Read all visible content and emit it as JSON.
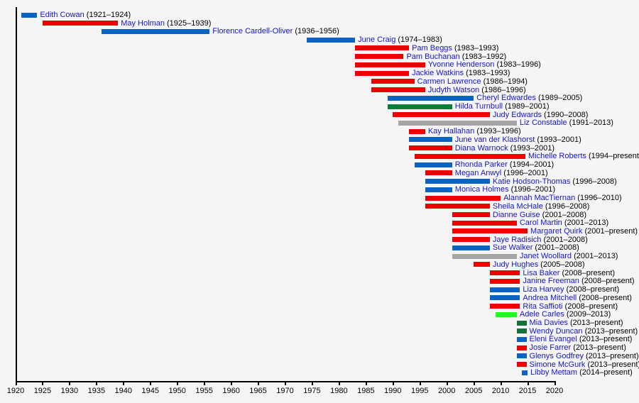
{
  "chart_data": {
    "type": "bar",
    "layout": "horizontal-timeline-gantt",
    "title": "",
    "xlabel": "",
    "ylabel": "",
    "grid": false,
    "legend": false,
    "x_axis": {
      "min": 1920,
      "max": 2020,
      "tick_interval": 5,
      "tick_labels": [
        "1920",
        "1925",
        "1930",
        "1935",
        "1940",
        "1945",
        "1950",
        "1955",
        "1960",
        "1965",
        "1970",
        "1975",
        "1980",
        "1985",
        "1990",
        "1995",
        "2000",
        "2005",
        "2010",
        "2015",
        "2020"
      ]
    },
    "palette": {
      "red": "#ee0000",
      "blue": "#0b63c4",
      "green": "#047f37",
      "darkgreen": "#15703c",
      "brightgreen": "#21fb21",
      "gray": "#a5a5a5"
    },
    "label_colors": {
      "name": "#1414cc",
      "years": "#000000",
      "axis": "#000000"
    },
    "background": "#f5f5f5",
    "members": [
      {
        "name": "Edith Cowan",
        "years": "1921–1924",
        "start": 1921,
        "end": 1924,
        "color": "blue"
      },
      {
        "name": "May Holman",
        "years": "1925–1939",
        "start": 1925,
        "end": 1939,
        "color": "red"
      },
      {
        "name": "Florence Cardell-Oliver",
        "years": "1936–1956",
        "start": 1936,
        "end": 1956,
        "color": "blue"
      },
      {
        "name": "June Craig",
        "years": "1974–1983",
        "start": 1974,
        "end": 1983,
        "color": "blue"
      },
      {
        "name": "Pam Beggs",
        "years": "1983–1993",
        "start": 1983,
        "end": 1993,
        "color": "red"
      },
      {
        "name": "Pam Buchanan",
        "years": "1983–1992",
        "start": 1983,
        "end": 1992,
        "color": "red"
      },
      {
        "name": "Yvonne Henderson",
        "years": "1983–1996",
        "start": 1983,
        "end": 1996,
        "color": "red"
      },
      {
        "name": "Jackie Watkins",
        "years": "1983–1993",
        "start": 1983,
        "end": 1993,
        "color": "red"
      },
      {
        "name": "Carmen Lawrence",
        "years": "1986–1994",
        "start": 1986,
        "end": 1994,
        "color": "red"
      },
      {
        "name": "Judyth Watson",
        "years": "1986–1996",
        "start": 1986,
        "end": 1996,
        "color": "red"
      },
      {
        "name": "Cheryl Edwardes",
        "years": "1989–2005",
        "start": 1989,
        "end": 2005,
        "color": "blue"
      },
      {
        "name": "Hilda Turnbull",
        "years": "1989–2001",
        "start": 1989,
        "end": 2001,
        "color": "green"
      },
      {
        "name": "Judy Edwards",
        "years": "1990–2008",
        "start": 1990,
        "end": 2008,
        "color": "red"
      },
      {
        "name": "Liz Constable",
        "years": "1991–2013",
        "start": 1991,
        "end": 2013,
        "color": "gray"
      },
      {
        "name": "Kay Hallahan",
        "years": "1993–1996",
        "start": 1993,
        "end": 1996,
        "color": "red"
      },
      {
        "name": "June van der Klashorst",
        "years": "1993–2001",
        "start": 1993,
        "end": 2001,
        "color": "blue"
      },
      {
        "name": "Diana Warnock",
        "years": "1993–2001",
        "start": 1993,
        "end": 2001,
        "color": "red"
      },
      {
        "name": "Michelle Roberts",
        "years": "1994–present",
        "start": 1994,
        "end": 2014.6,
        "color": "red"
      },
      {
        "name": "Rhonda Parker",
        "years": "1994–2001",
        "start": 1994,
        "end": 2001,
        "color": "blue"
      },
      {
        "name": "Megan Anwyl",
        "years": "1996–2001",
        "start": 1996,
        "end": 2001,
        "color": "red"
      },
      {
        "name": "Katie Hodson-Thomas",
        "years": "1996–2008",
        "start": 1996,
        "end": 2008,
        "color": "blue"
      },
      {
        "name": "Monica Holmes",
        "years": "1996–2001",
        "start": 1996,
        "end": 2001,
        "color": "blue"
      },
      {
        "name": "Alannah MacTiernan",
        "years": "1996–2010",
        "start": 1996,
        "end": 2010,
        "color": "red"
      },
      {
        "name": "Sheila McHale",
        "years": "1996–2008",
        "start": 1996,
        "end": 2008,
        "color": "red"
      },
      {
        "name": "Dianne Guise",
        "years": "2001–2008",
        "start": 2001,
        "end": 2008,
        "color": "red"
      },
      {
        "name": "Carol Martin",
        "years": "2001–2013",
        "start": 2001,
        "end": 2013,
        "color": "red"
      },
      {
        "name": "Margaret Quirk",
        "years": "2001–present",
        "start": 2001,
        "end": 2015,
        "color": "red"
      },
      {
        "name": "Jaye Radisich",
        "years": "2001–2008",
        "start": 2001,
        "end": 2008,
        "color": "red"
      },
      {
        "name": "Sue Walker",
        "years": "2001–2008",
        "start": 2001,
        "end": 2008,
        "color": "blue"
      },
      {
        "name": "Janet Woollard",
        "years": "2001–2013",
        "start": 2001,
        "end": 2013,
        "color": "gray"
      },
      {
        "name": "Judy Hughes",
        "years": "2005–2008",
        "start": 2005,
        "end": 2008,
        "color": "red"
      },
      {
        "name": "Lisa Baker",
        "years": "2008–present",
        "start": 2008,
        "end": 2013.6,
        "color": "red"
      },
      {
        "name": "Janine Freeman",
        "years": "2008–present",
        "start": 2008,
        "end": 2013.6,
        "color": "red"
      },
      {
        "name": "Liza Harvey",
        "years": "2008–present",
        "start": 2008,
        "end": 2013.6,
        "color": "blue"
      },
      {
        "name": "Andrea Mitchell",
        "years": "2008–present",
        "start": 2008,
        "end": 2013.6,
        "color": "blue"
      },
      {
        "name": "Rita Saffioti",
        "years": "2008–present",
        "start": 2008,
        "end": 2013.6,
        "color": "red"
      },
      {
        "name": "Adele Carles",
        "years": "2009–2013",
        "start": 2009,
        "end": 2013,
        "color": "brightgreen"
      },
      {
        "name": "Mia Davies",
        "years": "2013–present",
        "start": 2013,
        "end": 2014.8,
        "color": "darkgreen"
      },
      {
        "name": "Wendy Duncan",
        "years": "2013–present",
        "start": 2013,
        "end": 2014.8,
        "color": "darkgreen"
      },
      {
        "name": "Eleni Evangel",
        "years": "2013–present",
        "start": 2013,
        "end": 2014.8,
        "color": "blue"
      },
      {
        "name": "Josie Farrer",
        "years": "2013–present",
        "start": 2013,
        "end": 2014.8,
        "color": "red"
      },
      {
        "name": "Glenys Godfrey",
        "years": "2013–present",
        "start": 2013,
        "end": 2014.8,
        "color": "blue"
      },
      {
        "name": "Simone McGurk",
        "years": "2013–present",
        "start": 2013,
        "end": 2014.8,
        "color": "red"
      },
      {
        "name": "Libby Mettam",
        "years": "2014–present",
        "start": 2014,
        "end": 2015,
        "color": "blue"
      }
    ]
  }
}
